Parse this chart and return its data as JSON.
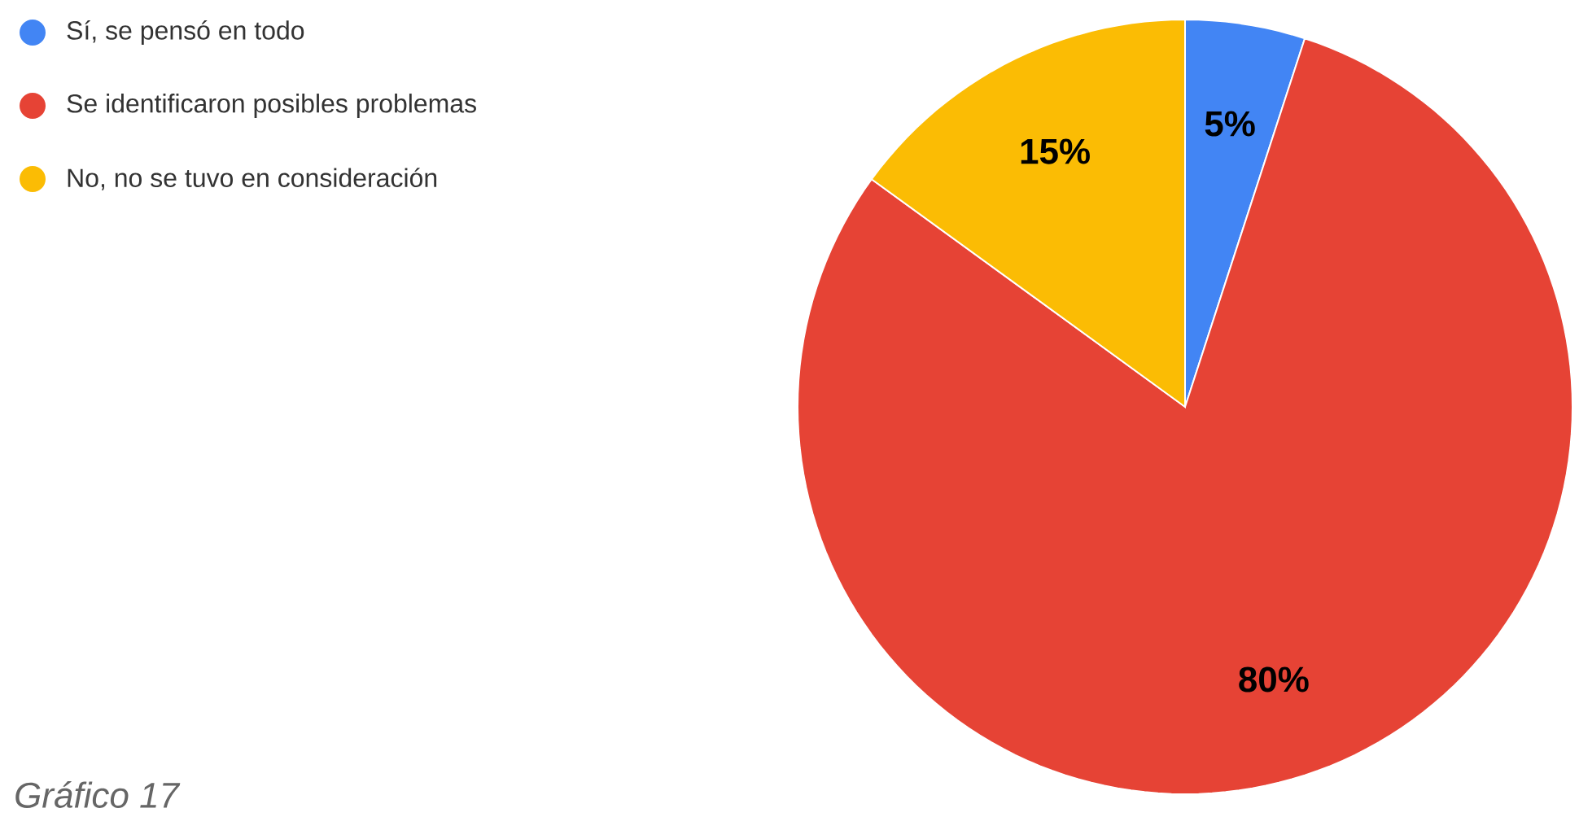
{
  "chart_data": {
    "type": "pie",
    "categories": [
      "Sí, se pensó en todo",
      "Se identificaron posibles problemas",
      "No, no se tuvo en consideración"
    ],
    "values": [
      5,
      80,
      15
    ],
    "colors": [
      "#4285f4",
      "#e64335",
      "#fbbc04"
    ],
    "value_labels": [
      "5%",
      "80%",
      "15%"
    ],
    "legend": "top left",
    "annotations": [
      "*Gráfico 17*"
    ]
  }
}
